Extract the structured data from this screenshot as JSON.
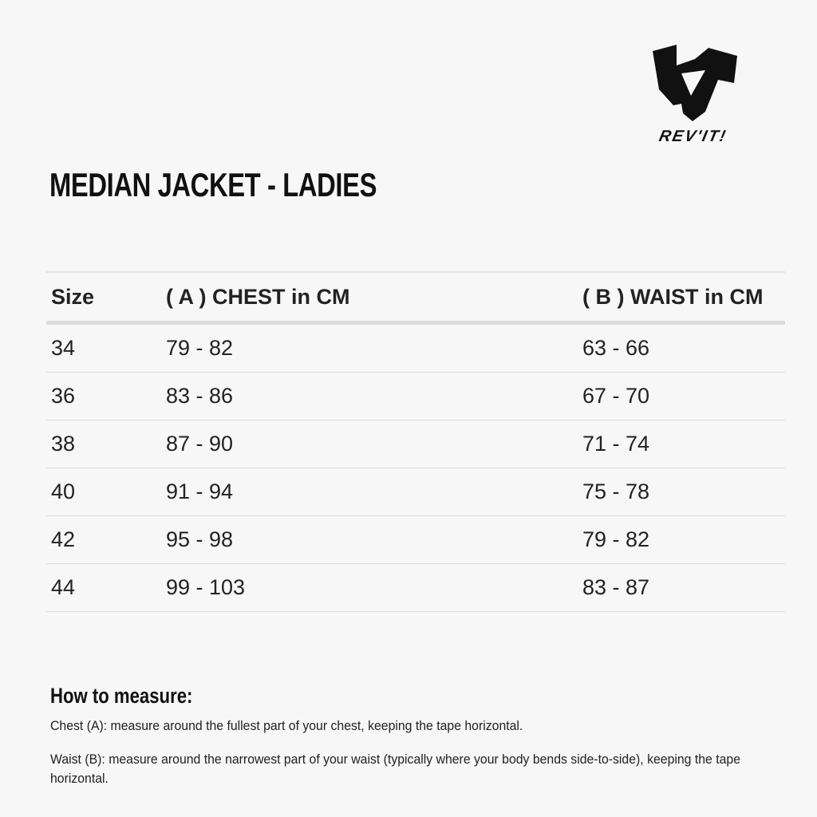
{
  "brand": {
    "logo_text": "REV'IT!"
  },
  "title": "MEDIAN JACKET - LADIES",
  "table": {
    "headers": [
      "Size",
      "( A ) CHEST in CM",
      "( B ) WAIST in CM"
    ],
    "rows": [
      [
        "34",
        "79 - 82",
        "63 - 66"
      ],
      [
        "36",
        "83 - 86",
        "67 - 70"
      ],
      [
        "38",
        "87 - 90",
        "71 - 74"
      ],
      [
        "40",
        "91 - 94",
        "75 - 78"
      ],
      [
        "42",
        "95 - 98",
        "79 - 82"
      ],
      [
        "44",
        "99 - 103",
        "83 - 87"
      ]
    ]
  },
  "how_to_measure": {
    "heading": "How to measure:",
    "chest": "Chest (A): measure around the fullest part of your chest, keeping the tape horizontal.",
    "waist": "Waist (B): measure around the narrowest part of your waist (typically where your body bends side-to-side), keeping the tape horizontal."
  }
}
